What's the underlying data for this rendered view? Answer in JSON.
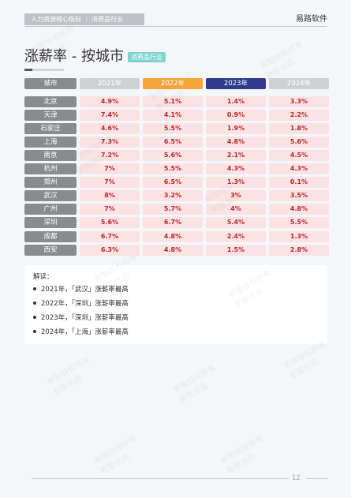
{
  "header": {
    "tag": "人力资源核心指标 ｜ 消费品行业",
    "brand": "易路软件"
  },
  "title": {
    "main": "涨薪率 - 按城市",
    "badge": "消费品行业"
  },
  "table": {
    "col_city": "城市",
    "years": [
      {
        "label": "2021年",
        "bg": "#cfd0d4"
      },
      {
        "label": "2022年",
        "bg": "#f5a53b"
      },
      {
        "label": "2023年",
        "bg": "#2e3a8c"
      },
      {
        "label": "2024年",
        "bg": "#cfd0d4"
      }
    ],
    "rows": [
      {
        "city": "北京",
        "values": [
          "4.9%",
          "5.1%",
          "1.4%",
          "3.3%"
        ]
      },
      {
        "city": "天津",
        "values": [
          "7.4%",
          "4.1%",
          "0.9%",
          "2.2%"
        ]
      },
      {
        "city": "石家庄",
        "values": [
          "4.6%",
          "5.5%",
          "1.9%",
          "1.8%"
        ]
      },
      {
        "city": "上海",
        "values": [
          "7.3%",
          "6.5%",
          "4.8%",
          "5.6%"
        ]
      },
      {
        "city": "南京",
        "values": [
          "7.2%",
          "5.6%",
          "2.1%",
          "4.5%"
        ]
      },
      {
        "city": "杭州",
        "values": [
          "7%",
          "5.5%",
          "4.3%",
          "4.3%"
        ]
      },
      {
        "city": "郑州",
        "values": [
          "7%",
          "6.5%",
          "1.3%",
          "0.1%"
        ]
      },
      {
        "city": "武汉",
        "values": [
          "8%",
          "3.2%",
          "3%",
          "3.5%"
        ]
      },
      {
        "city": "广州",
        "values": [
          "7%",
          "5.7%",
          "4%",
          "4.8%"
        ]
      },
      {
        "city": "深圳",
        "values": [
          "5.6%",
          "6.7%",
          "5.4%",
          "5.5%"
        ]
      },
      {
        "city": "成都",
        "values": [
          "6.7%",
          "4.8%",
          "2.4%",
          "1.3%"
        ]
      },
      {
        "city": "西安",
        "values": [
          "6.3%",
          "4.8%",
          "1.5%",
          "2.8%"
        ]
      }
    ]
  },
  "notes": {
    "title": "解读：",
    "items": [
      "2021年，「武汉」涨薪率最高",
      "2022年，「深圳」涨薪率最高",
      "2023年，「深圳」涨薪率最高",
      "2024年，「上海」涨薪率最高"
    ]
  },
  "watermark": {
    "line1": "新智妖权所有",
    "line2": "新智出品"
  },
  "footer": {
    "page_number": "12"
  }
}
